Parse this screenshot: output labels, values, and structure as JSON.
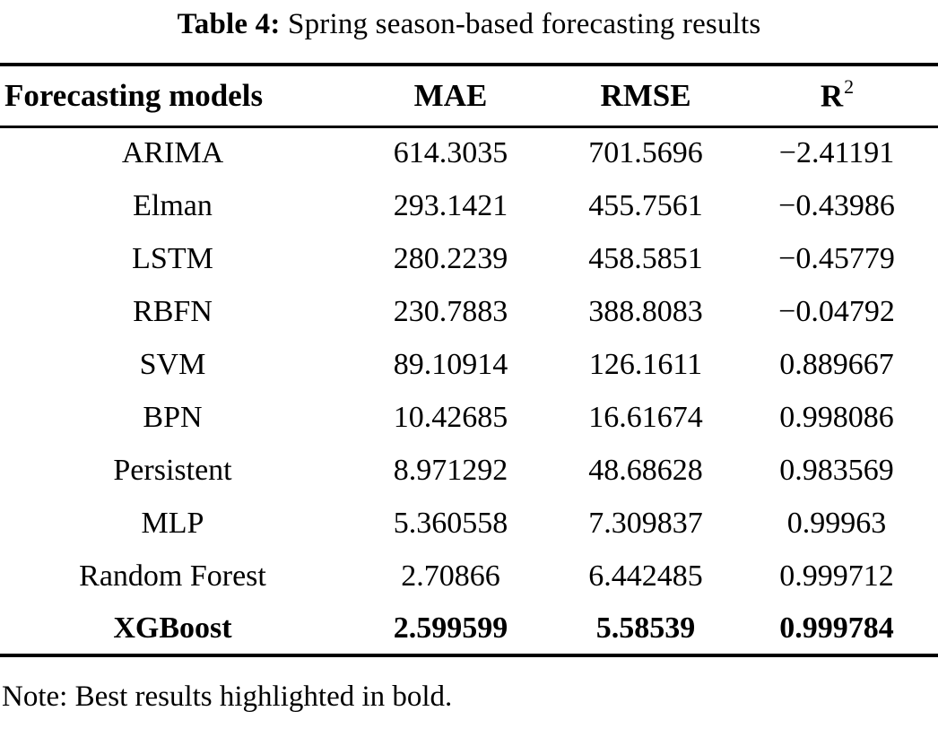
{
  "caption": {
    "label": "Table 4:",
    "text": "Spring season-based forecasting results"
  },
  "table": {
    "columns": [
      {
        "label": "Forecasting models"
      },
      {
        "label": "MAE"
      },
      {
        "label": "RMSE"
      },
      {
        "label": "R",
        "sup": "2"
      }
    ],
    "rows": [
      {
        "model": "ARIMA",
        "mae": "614.3035",
        "rmse": "701.5696",
        "r2": "−2.41191"
      },
      {
        "model": "Elman",
        "mae": "293.1421",
        "rmse": "455.7561",
        "r2": "−0.43986"
      },
      {
        "model": "LSTM",
        "mae": "280.2239",
        "rmse": "458.5851",
        "r2": "−0.45779"
      },
      {
        "model": "RBFN",
        "mae": "230.7883",
        "rmse": "388.8083",
        "r2": "−0.04792"
      },
      {
        "model": "SVM",
        "mae": "89.10914",
        "rmse": "126.1611",
        "r2": "0.889667"
      },
      {
        "model": "BPN",
        "mae": "10.42685",
        "rmse": "16.61674",
        "r2": "0.998086"
      },
      {
        "model": "Persistent",
        "mae": "8.971292",
        "rmse": "48.68628",
        "r2": "0.983569"
      },
      {
        "model": "MLP",
        "mae": "5.360558",
        "rmse": "7.309837",
        "r2": "0.99963"
      },
      {
        "model": "Random Forest",
        "mae": "2.70866",
        "rmse": "6.442485",
        "r2": "0.999712"
      },
      {
        "model": "XGBoost",
        "mae": "2.599599",
        "rmse": "5.58539",
        "r2": "0.999784",
        "best": true
      }
    ]
  },
  "note": "Note: Best results highlighted in bold.",
  "colors": {
    "text": "#000000",
    "background": "#ffffff",
    "rule": "#000000"
  }
}
